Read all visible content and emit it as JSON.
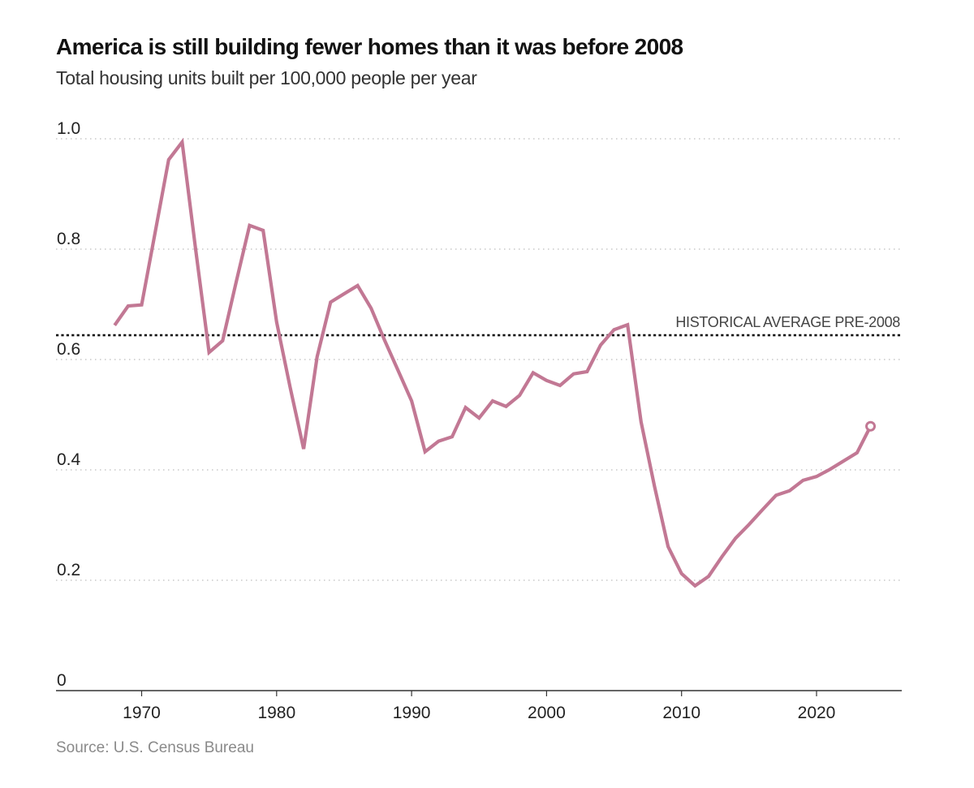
{
  "chart_data": {
    "type": "line",
    "title": "America is still building fewer homes than it was before 2008",
    "subtitle": "Total housing units built per 100,000 people per year",
    "xlabel": "",
    "ylabel": "",
    "source": "Source: U.S. Census Bureau",
    "xlim": [
      1964,
      2026
    ],
    "ylim": [
      0,
      1.0
    ],
    "grid": true,
    "x_ticks": [
      1970,
      1980,
      1990,
      2000,
      2010,
      2020
    ],
    "x_tick_labels": [
      "1970",
      "1980",
      "1990",
      "2000",
      "2010",
      "2020"
    ],
    "y_ticks": [
      0,
      0.2,
      0.4,
      0.6,
      0.8,
      1.0
    ],
    "y_tick_labels": [
      "0",
      "0.2",
      "0.4",
      "0.6",
      "0.8",
      "1.0"
    ],
    "series": [
      {
        "name": "Housing units built per 100,000 people",
        "color": "#c27894",
        "x": [
          1968,
          1969,
          1970,
          1971,
          1972,
          1973,
          1974,
          1975,
          1976,
          1977,
          1978,
          1979,
          1980,
          1981,
          1982,
          1983,
          1984,
          1985,
          1986,
          1987,
          1988,
          1989,
          1990,
          1991,
          1992,
          1993,
          1994,
          1995,
          1996,
          1997,
          1998,
          1999,
          2000,
          2001,
          2002,
          2003,
          2004,
          2005,
          2006,
          2007,
          2008,
          2009,
          2010,
          2011,
          2012,
          2013,
          2014,
          2015,
          2016,
          2017,
          2018,
          2019,
          2020,
          2021,
          2022,
          2023,
          2024
        ],
        "values": [
          0.662,
          0.697,
          0.699,
          0.83,
          0.962,
          0.994,
          0.8,
          0.613,
          0.634,
          0.74,
          0.843,
          0.834,
          0.668,
          0.55,
          0.438,
          0.605,
          0.704,
          0.719,
          0.734,
          0.693,
          0.635,
          0.58,
          0.525,
          0.433,
          0.452,
          0.46,
          0.513,
          0.494,
          0.525,
          0.515,
          0.535,
          0.576,
          0.562,
          0.553,
          0.574,
          0.578,
          0.626,
          0.654,
          0.663,
          0.487,
          0.37,
          0.261,
          0.212,
          0.19,
          0.207,
          0.243,
          0.276,
          0.301,
          0.328,
          0.354,
          0.362,
          0.381,
          0.388,
          0.401,
          0.416,
          0.431,
          0.479
        ],
        "end_marker": true
      }
    ],
    "reference_lines": [
      {
        "label": "HISTORICAL AVERAGE PRE-2008",
        "y": 0.644,
        "style": "dotted",
        "color": "#121212"
      }
    ]
  }
}
